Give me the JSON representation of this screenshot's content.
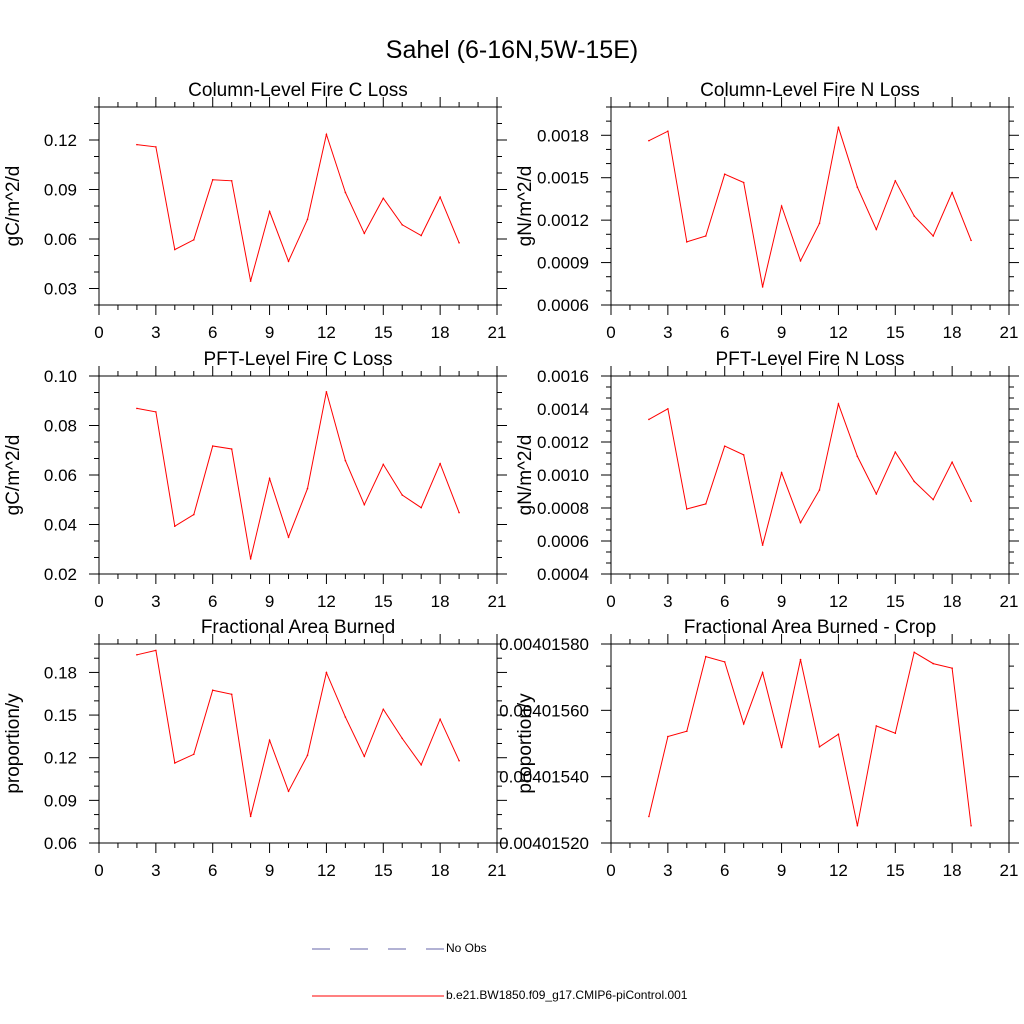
{
  "figure": {
    "title": "Sahel (6-16N,5W-15E)",
    "colors": {
      "model_line": "#ff0000",
      "obs_line": "#6666aa",
      "axis": "#000000"
    }
  },
  "chart_data": [
    {
      "type": "line",
      "title": "Column-Level Fire C Loss",
      "xlabel": "",
      "ylabel": "gC/m^2/d",
      "xlim": [
        0,
        21
      ],
      "ylim": [
        0.02,
        0.14
      ],
      "xticks": [
        0,
        3,
        6,
        9,
        12,
        15,
        18,
        21
      ],
      "xtick_labels": [
        "0",
        "3",
        "6",
        "9",
        "12",
        "15",
        "18",
        "21"
      ],
      "yticks": [
        0.03,
        0.06,
        0.09,
        0.12
      ],
      "ytick_labels": [
        "0.03",
        "0.06",
        "0.09",
        "0.12"
      ],
      "x": [
        2,
        3,
        4,
        5,
        6,
        7,
        8,
        9,
        10,
        11,
        12,
        13,
        14,
        15,
        16,
        17,
        18,
        19
      ],
      "series": [
        {
          "name": "b.e21.BW1850.f09_g17.CMIP6-piControl.001",
          "values": [
            0.1172,
            0.1158,
            0.0536,
            0.0595,
            0.0959,
            0.0953,
            0.0345,
            0.0767,
            0.0465,
            0.0719,
            0.1234,
            0.0882,
            0.0634,
            0.0847,
            0.0686,
            0.0621,
            0.0854,
            0.0577
          ]
        }
      ]
    },
    {
      "type": "line",
      "title": "Column-Level Fire N Loss",
      "xlabel": "",
      "ylabel": "gN/m^2/d",
      "xlim": [
        0,
        21
      ],
      "ylim": [
        0.0006,
        0.002
      ],
      "xticks": [
        0,
        3,
        6,
        9,
        12,
        15,
        18,
        21
      ],
      "xtick_labels": [
        "0",
        "3",
        "6",
        "9",
        "12",
        "15",
        "18",
        "21"
      ],
      "yticks": [
        0.0006,
        0.0009,
        0.0012,
        0.0015,
        0.0018
      ],
      "ytick_labels": [
        "0.0006",
        "0.0009",
        "0.0012",
        "0.0015",
        "0.0018"
      ],
      "x": [
        2,
        3,
        4,
        5,
        6,
        7,
        8,
        9,
        10,
        11,
        12,
        13,
        14,
        15,
        16,
        17,
        18,
        19
      ],
      "series": [
        {
          "name": "b.e21.BW1850.f09_g17.CMIP6-piControl.001",
          "values": [
            0.001762,
            0.001829,
            0.001046,
            0.001088,
            0.001525,
            0.001466,
            0.000728,
            0.0013,
            0.000912,
            0.001178,
            0.001857,
            0.001433,
            0.001134,
            0.001478,
            0.001229,
            0.001088,
            0.001395,
            0.001057
          ]
        }
      ]
    },
    {
      "type": "line",
      "title": "PFT-Level Fire C Loss",
      "xlabel": "",
      "ylabel": "gC/m^2/d",
      "xlim": [
        0,
        21
      ],
      "ylim": [
        0.02,
        0.1
      ],
      "xticks": [
        0,
        3,
        6,
        9,
        12,
        15,
        18,
        21
      ],
      "xtick_labels": [
        "0",
        "3",
        "6",
        "9",
        "12",
        "15",
        "18",
        "21"
      ],
      "yticks": [
        0.02,
        0.04,
        0.06,
        0.08,
        0.1
      ],
      "ytick_labels": [
        "0.02",
        "0.04",
        "0.06",
        "0.08",
        "0.10"
      ],
      "x": [
        2,
        3,
        4,
        5,
        6,
        7,
        8,
        9,
        10,
        11,
        12,
        13,
        14,
        15,
        16,
        17,
        18,
        19
      ],
      "series": [
        {
          "name": "b.e21.BW1850.f09_g17.CMIP6-piControl.001",
          "values": [
            0.0869,
            0.0855,
            0.0393,
            0.044,
            0.0717,
            0.0705,
            0.0261,
            0.0586,
            0.0349,
            0.0545,
            0.0936,
            0.0658,
            0.048,
            0.0643,
            0.0519,
            0.0468,
            0.0646,
            0.0448
          ]
        }
      ]
    },
    {
      "type": "line",
      "title": "PFT-Level Fire N Loss",
      "xlabel": "",
      "ylabel": "gN/m^2/d",
      "xlim": [
        0,
        21
      ],
      "ylim": [
        0.0004,
        0.0016
      ],
      "xticks": [
        0,
        3,
        6,
        9,
        12,
        15,
        18,
        21
      ],
      "xtick_labels": [
        "0",
        "3",
        "6",
        "9",
        "12",
        "15",
        "18",
        "21"
      ],
      "yticks": [
        0.0004,
        0.0006,
        0.0008,
        0.001,
        0.0012,
        0.0014,
        0.0016
      ],
      "ytick_labels": [
        "0.0004",
        "0.0006",
        "0.0008",
        "0.0010",
        "0.0012",
        "0.0014",
        "0.0016"
      ],
      "x": [
        2,
        3,
        4,
        5,
        6,
        7,
        8,
        9,
        10,
        11,
        12,
        13,
        14,
        15,
        16,
        17,
        18,
        19
      ],
      "series": [
        {
          "name": "b.e21.BW1850.f09_g17.CMIP6-piControl.001",
          "values": [
            0.001337,
            0.001401,
            0.000794,
            0.000825,
            0.001175,
            0.001122,
            0.000575,
            0.001014,
            0.000711,
            0.000909,
            0.001431,
            0.001113,
            0.000885,
            0.001139,
            0.000961,
            0.000851,
            0.001078,
            0.000841
          ]
        }
      ]
    },
    {
      "type": "line",
      "title": "Fractional Area Burned",
      "xlabel": "",
      "ylabel": "proportion/y",
      "xlim": [
        0,
        21
      ],
      "ylim": [
        0.06,
        0.2
      ],
      "xticks": [
        0,
        3,
        6,
        9,
        12,
        15,
        18,
        21
      ],
      "xtick_labels": [
        "0",
        "3",
        "6",
        "9",
        "12",
        "15",
        "18",
        "21"
      ],
      "yticks": [
        0.06,
        0.09,
        0.12,
        0.15,
        0.18
      ],
      "ytick_labels": [
        "0.06",
        "0.09",
        "0.12",
        "0.15",
        "0.18"
      ],
      "x": [
        2,
        3,
        4,
        5,
        6,
        7,
        8,
        9,
        10,
        11,
        12,
        13,
        14,
        15,
        16,
        17,
        18,
        19
      ],
      "series": [
        {
          "name": "b.e21.BW1850.f09_g17.CMIP6-piControl.001",
          "values": [
            0.1924,
            0.1955,
            0.1163,
            0.1224,
            0.1675,
            0.1646,
            0.0787,
            0.1323,
            0.0964,
            0.1217,
            0.1799,
            0.1486,
            0.1209,
            0.1541,
            0.1336,
            0.115,
            0.1471,
            0.1179
          ]
        }
      ]
    },
    {
      "type": "line",
      "title": "Fractional Area Burned - Crop",
      "xlabel": "",
      "ylabel": "proportion/y",
      "xlim": [
        0,
        21
      ],
      "ylim": [
        0.0040152,
        0.0040158
      ],
      "xticks": [
        0,
        3,
        6,
        9,
        12,
        15,
        18,
        21
      ],
      "xtick_labels": [
        "0",
        "3",
        "6",
        "9",
        "12",
        "15",
        "18",
        "21"
      ],
      "yticks": [
        0.0040152,
        0.0040154,
        0.0040156,
        0.0040158
      ],
      "ytick_labels": [
        "0.00401520",
        "0.00401540",
        "0.00401560",
        "0.00401580"
      ],
      "x": [
        2,
        3,
        4,
        5,
        6,
        7,
        8,
        9,
        10,
        11,
        12,
        13,
        14,
        15,
        16,
        17,
        18,
        19
      ],
      "series": [
        {
          "name": "b.e21.BW1850.f09_g17.CMIP6-piControl.001",
          "values": [
            0.00401528,
            0.004015521,
            0.004015537,
            0.004015762,
            0.004015746,
            0.004015559,
            0.004015714,
            0.004015488,
            0.004015753,
            0.00401549,
            0.004015528,
            0.004015252,
            0.004015553,
            0.004015531,
            0.004015775,
            0.004015741,
            0.004015727,
            0.004015252
          ]
        }
      ]
    }
  ],
  "legend": {
    "items": [
      {
        "label": "No Obs",
        "style": "dashed",
        "color": "#6666aa"
      },
      {
        "label": "b.e21.BW1850.f09_g17.CMIP6-piControl.001",
        "style": "solid",
        "color": "#ff0000"
      }
    ]
  }
}
